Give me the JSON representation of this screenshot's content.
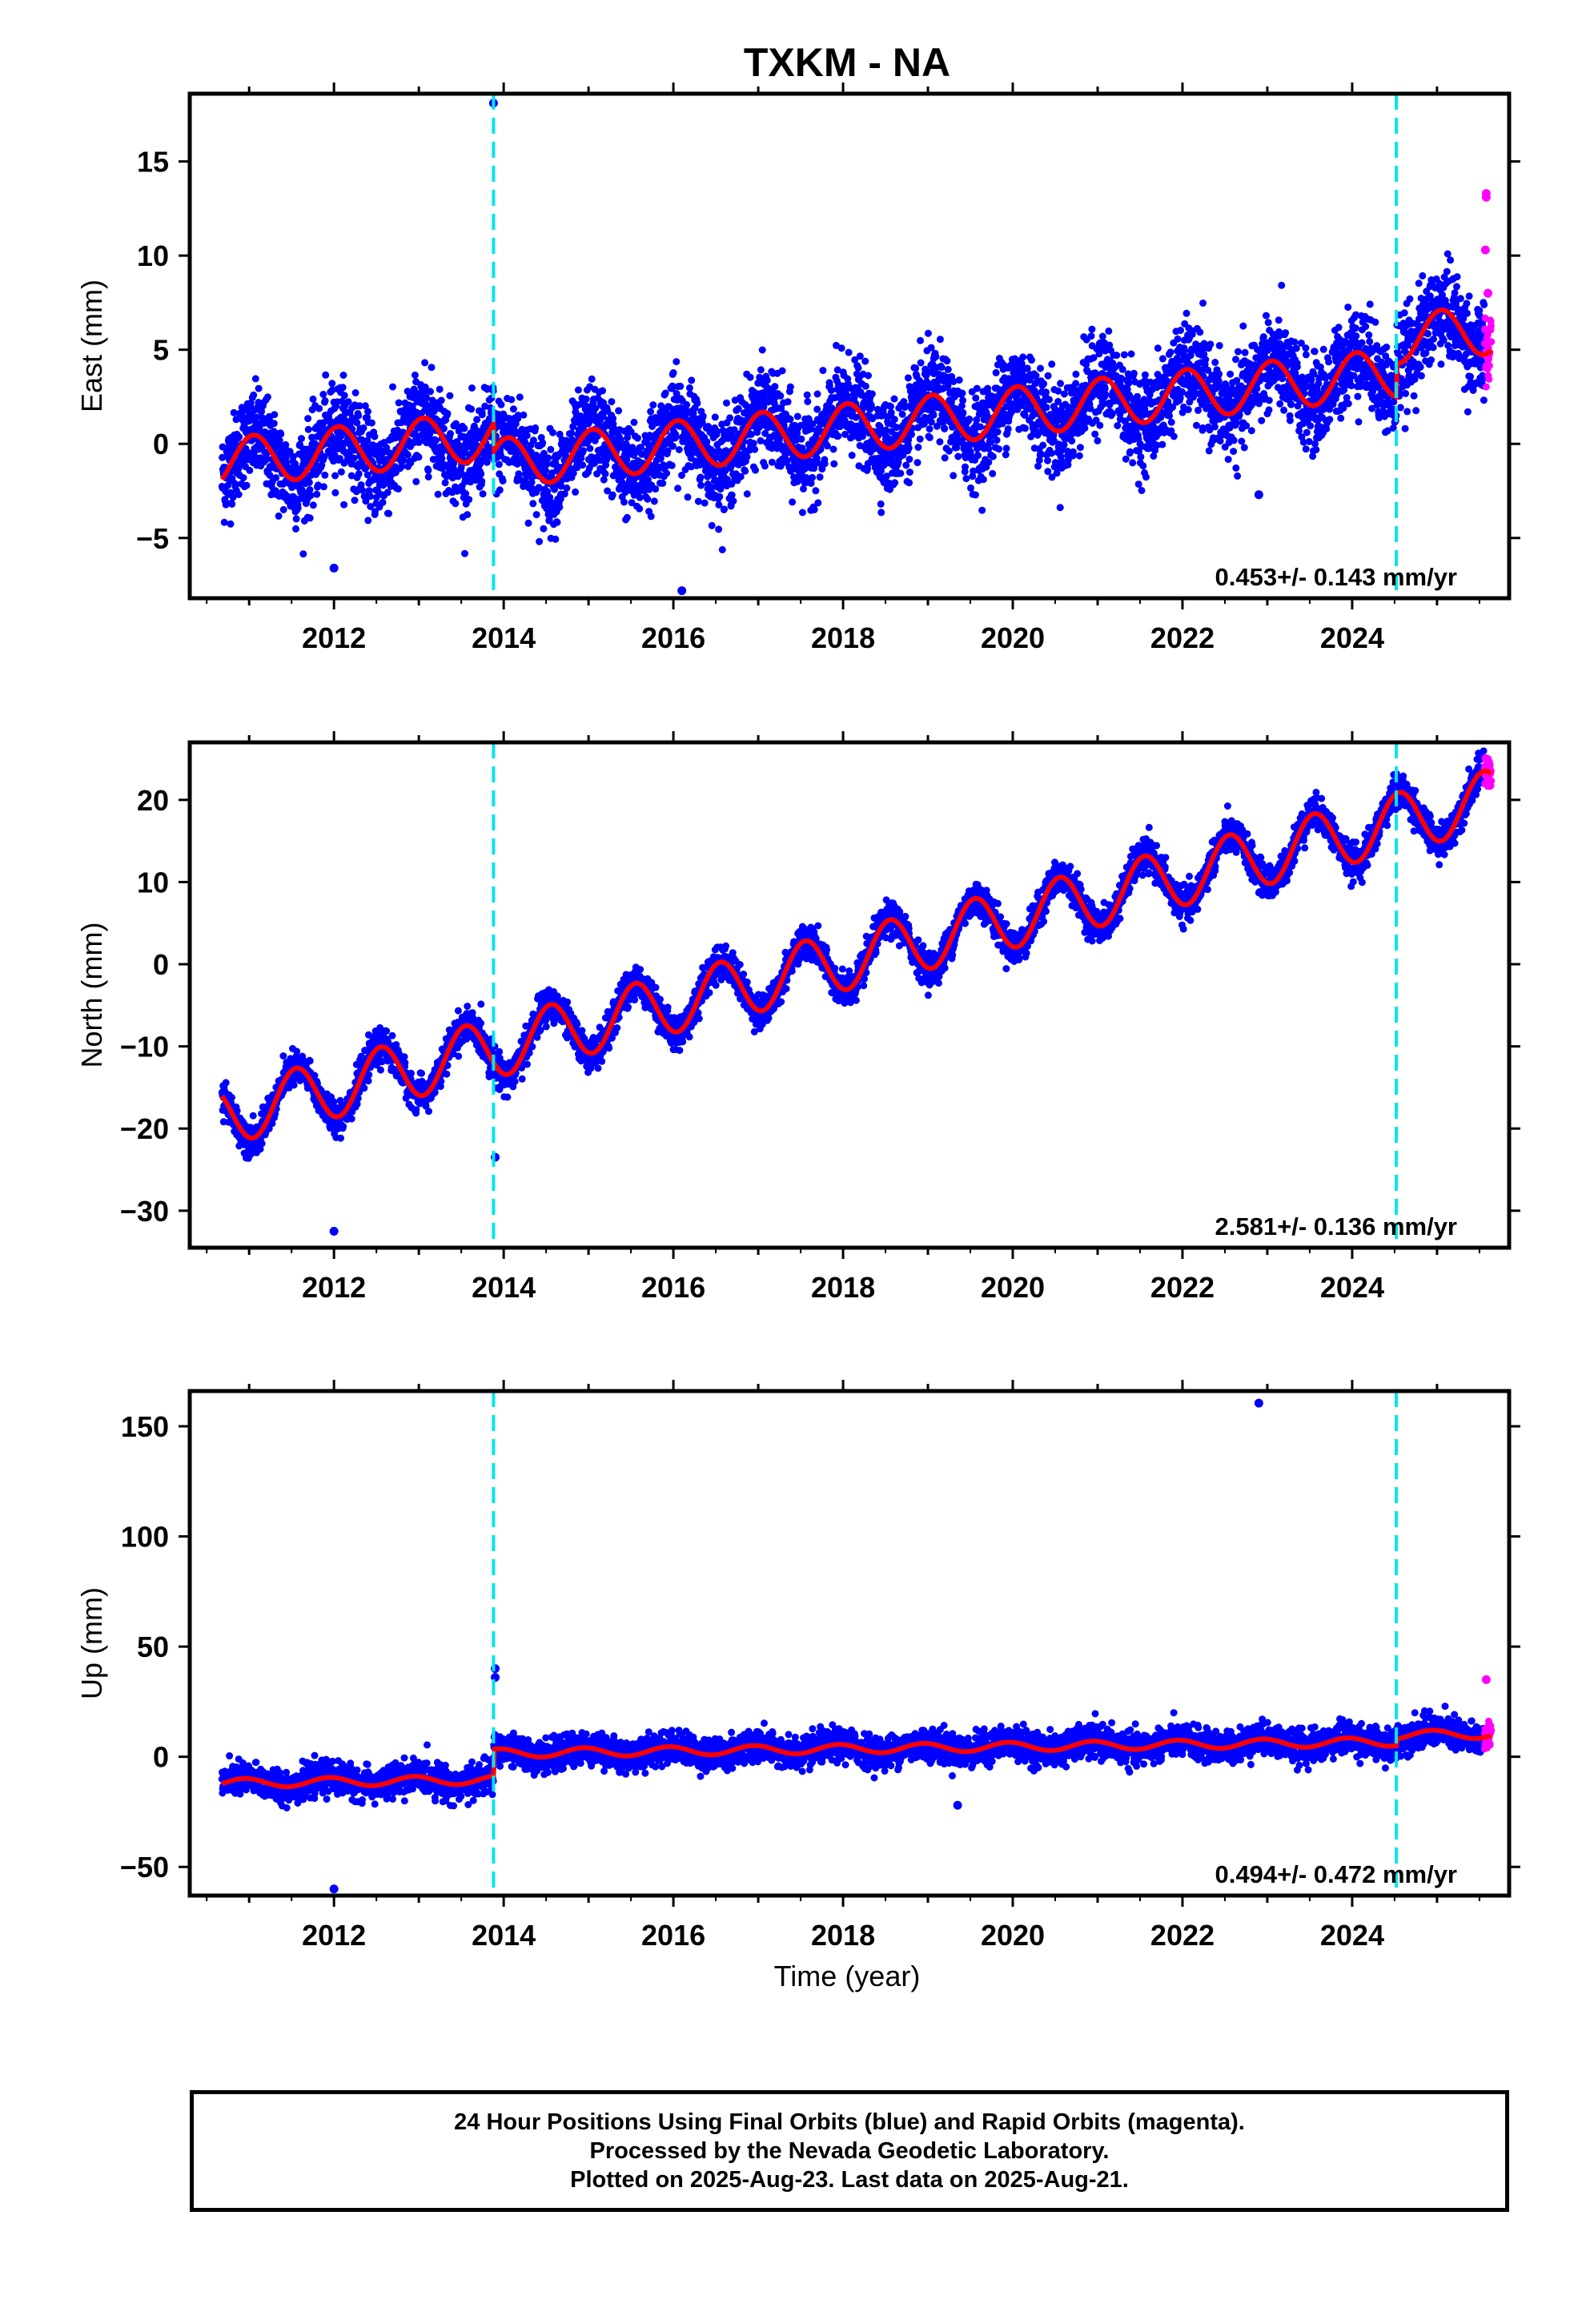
{
  "title": "TXKM - NA",
  "xlabel": "Time (year)",
  "colors": {
    "final_orbits": "#0000ff",
    "rapid_orbits": "#ff00ff",
    "model": "#ff0000",
    "steps": "#00e5ee",
    "frame": "#000000"
  },
  "chart_data": [
    {
      "type": "scatter",
      "component": "east",
      "ylabel": "East (mm)",
      "xlim": [
        2010.3,
        2025.85
      ],
      "ylim": [
        -8.2,
        18.6
      ],
      "yticks": [
        -5,
        0,
        5,
        10,
        15
      ],
      "yticklabels": [
        "−5",
        "0",
        "5",
        "10",
        "15"
      ],
      "xticks": [
        2012,
        2014,
        2016,
        2018,
        2020,
        2022,
        2024
      ],
      "xticklabels": [
        "2012",
        "2014",
        "2016",
        "2018",
        "2020",
        "2022",
        "2024"
      ],
      "rate_label": "0.453+/- 0.143 mm/yr",
      "data_start": 2010.68,
      "data_end": 2025.64,
      "rapid_start": 2025.56,
      "rate_mm_per_yr": 0.453,
      "intercept_mm": -1.0,
      "annual_amplitude_mm": 1.3,
      "annual_peak_phase": 0.05,
      "scatter_mm": 1.2,
      "step_offsets": [
        {
          "epoch": 2013.88,
          "offset": -1.5
        },
        {
          "epoch": 2024.52,
          "offset": 1.8
        }
      ],
      "step_epochs": [
        2013.88,
        2024.52
      ],
      "outliers": [
        {
          "x": 2013.88,
          "y": 18.1
        },
        {
          "x": 2012.0,
          "y": -6.6
        },
        {
          "x": 2016.1,
          "y": -7.8
        },
        {
          "x": 2022.9,
          "y": -2.7
        },
        {
          "x": 2025.58,
          "y": 13.3
        },
        {
          "x": 2025.58,
          "y": 13.1
        },
        {
          "x": 2025.57,
          "y": 10.3
        },
        {
          "x": 2025.6,
          "y": 8.0
        }
      ]
    },
    {
      "type": "scatter",
      "component": "north",
      "ylabel": "North (mm)",
      "xlim": [
        2010.3,
        2025.85
      ],
      "ylim": [
        -34.5,
        27.0
      ],
      "yticks": [
        -30,
        -20,
        -10,
        0,
        10,
        20
      ],
      "yticklabels": [
        "−30",
        "−20",
        "−10",
        "0",
        "10",
        "20"
      ],
      "xticks": [
        2012,
        2014,
        2016,
        2018,
        2020,
        2022,
        2024
      ],
      "xticklabels": [
        "2012",
        "2014",
        "2016",
        "2018",
        "2020",
        "2022",
        "2024"
      ],
      "rate_label": "2.581+/- 0.136 mm/yr",
      "data_start": 2010.68,
      "data_end": 2025.64,
      "rapid_start": 2025.56,
      "rate_mm_per_yr": 2.581,
      "intercept_mm": -18.5,
      "annual_amplitude_mm": 3.6,
      "annual_peak_phase": 0.55,
      "scatter_mm": 1.0,
      "step_offsets": [
        {
          "epoch": 2013.88,
          "offset": 0.0
        },
        {
          "epoch": 2024.52,
          "offset": 0.0
        }
      ],
      "step_epochs": [
        2013.88,
        2024.52
      ],
      "outliers": [
        {
          "x": 2012.0,
          "y": -32.5
        },
        {
          "x": 2013.9,
          "y": -23.5
        },
        {
          "x": 2025.58,
          "y": 25.0
        }
      ]
    },
    {
      "type": "scatter",
      "component": "up",
      "ylabel": "Up (mm)",
      "xlim": [
        2010.3,
        2025.85
      ],
      "ylim": [
        -63.0,
        166.0
      ],
      "yticks": [
        -50,
        0,
        50,
        100,
        150
      ],
      "yticklabels": [
        "−50",
        "0",
        "50",
        "100",
        "150"
      ],
      "xticks": [
        2012,
        2014,
        2016,
        2018,
        2020,
        2022,
        2024
      ],
      "xticklabels": [
        "2012",
        "2014",
        "2016",
        "2018",
        "2020",
        "2022",
        "2024"
      ],
      "rate_label": "0.494+/- 0.472 mm/yr",
      "data_start": 2010.68,
      "data_end": 2025.64,
      "rapid_start": 2025.56,
      "rate_mm_per_yr": 0.494,
      "intercept_mm": -12.0,
      "annual_amplitude_mm": 2.0,
      "annual_peak_phase": 0.95,
      "scatter_mm": 3.5,
      "step_offsets": [
        {
          "epoch": 2013.88,
          "offset": 12.0
        },
        {
          "epoch": 2024.52,
          "offset": 3.0
        }
      ],
      "step_epochs": [
        2013.88,
        2024.52
      ],
      "outliers": [
        {
          "x": 2022.9,
          "y": 160.5
        },
        {
          "x": 2012.0,
          "y": -60.0
        },
        {
          "x": 2013.9,
          "y": 40.0
        },
        {
          "x": 2013.9,
          "y": 36.0
        },
        {
          "x": 2019.35,
          "y": -22.0
        },
        {
          "x": 2025.58,
          "y": 35.0
        }
      ]
    }
  ],
  "footer": {
    "line1": "24 Hour Positions Using Final Orbits (blue) and Rapid Orbits (magenta).",
    "line2": "Processed by the Nevada Geodetic Laboratory.",
    "line3": "Plotted on 2025-Aug-23. Last data on 2025-Aug-21."
  }
}
